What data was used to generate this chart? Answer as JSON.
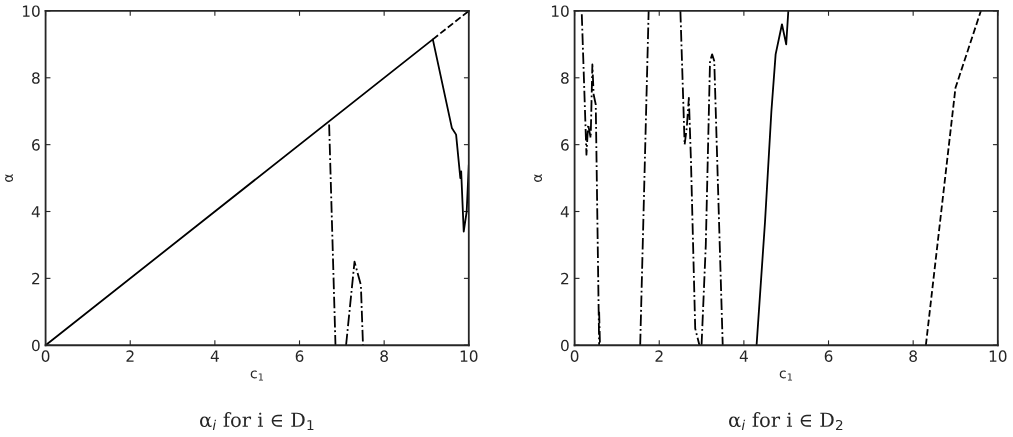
{
  "chart_data": [
    {
      "type": "line",
      "title": "α$_{i}$ for i ∈ D$_{1}$",
      "xlabel": "c$_{1}$",
      "ylabel": "α",
      "xlim": [
        0,
        10
      ],
      "ylim": [
        0,
        10
      ],
      "xticks": [
        0,
        2,
        4,
        6,
        8,
        10
      ],
      "yticks": [
        0,
        2,
        4,
        6,
        8,
        10
      ],
      "grid": false,
      "legend": false,
      "series": [
        {
          "color": "#000000",
          "line_style": "solid",
          "x": [
            0,
            9.15,
            9.6,
            9.7,
            9.8,
            9.82,
            9.88,
            9.95,
            10
          ],
          "values": [
            0,
            9.15,
            6.5,
            6.3,
            5.0,
            5.2,
            3.4,
            4.0,
            5.4
          ]
        },
        {
          "color": "#000000",
          "line_style": "dashed",
          "x": [
            9.15,
            10
          ],
          "values": [
            9.15,
            10
          ]
        },
        {
          "color": "#000000",
          "line_style": "dotted",
          "x": [
            6.7,
            6.85,
            null,
            7.1,
            7.3,
            7.45,
            7.5
          ],
          "values": [
            6.6,
            0,
            null,
            0,
            2.5,
            1.8,
            0
          ]
        }
      ]
    },
    {
      "type": "line",
      "title": "α$_{i}$ for i ∈ D$_{2}$",
      "xlabel": "c$_{1}$",
      "ylabel": "α",
      "xlim": [
        0,
        10
      ],
      "ylim": [
        0,
        10
      ],
      "xticks": [
        0,
        2,
        4,
        6,
        8,
        10
      ],
      "yticks": [
        0,
        2,
        4,
        6,
        8,
        10
      ],
      "grid": false,
      "legend": false,
      "series": [
        {
          "color": "#000000",
          "line_style": "solid",
          "x": [
            4.3,
            4.5,
            4.65,
            4.75,
            4.9,
            5.0,
            5.05
          ],
          "values": [
            0,
            3.7,
            7.0,
            8.7,
            9.6,
            9.0,
            10
          ]
        },
        {
          "color": "#000000",
          "line_style": "dashed",
          "x": [
            8.3,
            9.0,
            9.6
          ],
          "values": [
            0,
            7.7,
            10
          ]
        },
        {
          "color": "#000000",
          "line_style": "dotted",
          "x": [
            0.17,
            0.28,
            0.32,
            0.38,
            0.42,
            0.45,
            0.5,
            0.58,
            null,
            0.58,
            0.6,
            null,
            1.55,
            1.75,
            null,
            2.5,
            2.6,
            2.65,
            2.7,
            2.75,
            2.85,
            2.95,
            null,
            3.0,
            3.1,
            3.2,
            3.25,
            3.3,
            3.5
          ],
          "values": [
            9.9,
            5.7,
            6.6,
            6.2,
            8.4,
            7.5,
            7.2,
            0,
            null,
            1.0,
            0,
            null,
            0,
            10,
            null,
            10,
            6.0,
            6.5,
            7.4,
            5.5,
            0.5,
            0,
            null,
            0,
            3.0,
            8.5,
            8.7,
            8.5,
            0
          ]
        }
      ]
    }
  ]
}
